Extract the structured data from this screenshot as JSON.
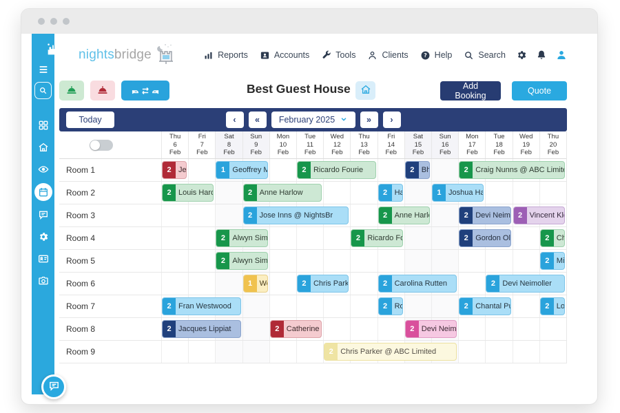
{
  "colors": {
    "sidebar_blue": "#2ba8dd",
    "navbar_navy": "#2b3f77",
    "add_booking_navy": "#273c72",
    "quote_blue": "#2aa9e0",
    "titlebar_gray": "#ebebeb"
  },
  "sidebar": {
    "items": [
      {
        "icon": "castle-logo",
        "interactable": false
      },
      {
        "icon": "menu",
        "interactable": true
      },
      {
        "icon": "search",
        "interactable": true,
        "boxed": true
      },
      {
        "icon": "grid",
        "interactable": true,
        "gap": true
      },
      {
        "icon": "home",
        "interactable": true
      },
      {
        "icon": "eye",
        "interactable": true
      },
      {
        "icon": "calendar",
        "interactable": true,
        "active": true
      },
      {
        "icon": "chat",
        "interactable": true
      },
      {
        "icon": "gear",
        "interactable": true
      },
      {
        "icon": "id-card",
        "interactable": true
      },
      {
        "icon": "camera",
        "interactable": true
      }
    ]
  },
  "topnav": {
    "logo": {
      "part1": "nights",
      "part2": "bridge"
    },
    "items": [
      {
        "label": "Reports",
        "icon": "bar-chart"
      },
      {
        "label": "Accounts",
        "icon": "contact-card"
      },
      {
        "label": "Tools",
        "icon": "wrench"
      },
      {
        "label": "Clients",
        "icon": "person"
      },
      {
        "label": "Help",
        "icon": "help-circle"
      },
      {
        "label": "Search",
        "icon": "magnifier"
      }
    ],
    "action_icons": [
      {
        "icon": "gear"
      },
      {
        "icon": "bell"
      },
      {
        "icon": "user-avatar"
      }
    ]
  },
  "toolbar": {
    "property_name": "Best Guest House",
    "icon_buttons": [
      {
        "icon": "service-bell",
        "variant": "green"
      },
      {
        "icon": "service-bell",
        "variant": "red"
      },
      {
        "icon": "room-move",
        "variant": "blue"
      }
    ],
    "add_booking_label": "Add Booking",
    "quote_label": "Quote"
  },
  "date_nav": {
    "today_label": "Today",
    "prev": "‹",
    "fast_prev": "«",
    "month_label": "February 2025",
    "fast_next": "»",
    "next": "›"
  },
  "grid": {
    "days": [
      {
        "dow": "Thu",
        "day": "6",
        "month": "Feb",
        "weekend": false
      },
      {
        "dow": "Fri",
        "day": "7",
        "month": "Feb",
        "weekend": false
      },
      {
        "dow": "Sat",
        "day": "8",
        "month": "Feb",
        "weekend": true
      },
      {
        "dow": "Sun",
        "day": "9",
        "month": "Feb",
        "weekend": true
      },
      {
        "dow": "Mon",
        "day": "10",
        "month": "Feb",
        "weekend": false
      },
      {
        "dow": "Tue",
        "day": "11",
        "month": "Feb",
        "weekend": false
      },
      {
        "dow": "Wed",
        "day": "12",
        "month": "Feb",
        "weekend": false
      },
      {
        "dow": "Thu",
        "day": "13",
        "month": "Feb",
        "weekend": false
      },
      {
        "dow": "Fri",
        "day": "14",
        "month": "Feb",
        "weekend": false
      },
      {
        "dow": "Sat",
        "day": "15",
        "month": "Feb",
        "weekend": true
      },
      {
        "dow": "Sun",
        "day": "16",
        "month": "Feb",
        "weekend": true
      },
      {
        "dow": "Mon",
        "day": "17",
        "month": "Feb",
        "weekend": false
      },
      {
        "dow": "Tue",
        "day": "18",
        "month": "Feb",
        "weekend": false
      },
      {
        "dow": "Wed",
        "day": "19",
        "month": "Feb",
        "weekend": false
      },
      {
        "dow": "Thu",
        "day": "20",
        "month": "Feb",
        "weekend": false
      }
    ],
    "rooms": [
      {
        "name": "Room 1",
        "bookings": [
          {
            "guests": "2",
            "name": "Jessi",
            "start": 0,
            "span": 1,
            "scheme": "red"
          },
          {
            "guests": "1",
            "name": "Geoffrey Mo",
            "start": 2,
            "span": 2,
            "scheme": "blue"
          },
          {
            "guests": "2",
            "name": "Ricardo Fourie",
            "start": 5,
            "span": 3,
            "scheme": "green"
          },
          {
            "guests": "2",
            "name": "Bhak",
            "start": 9,
            "span": 1,
            "scheme": "navy"
          },
          {
            "guests": "2",
            "name": "Craig Nunns @ ABC Limited",
            "start": 11,
            "span": 4,
            "scheme": "green"
          }
        ]
      },
      {
        "name": "Room 2",
        "bookings": [
          {
            "guests": "2",
            "name": "Louis Hardy",
            "start": 0,
            "span": 2,
            "scheme": "green"
          },
          {
            "guests": "2",
            "name": "Anne Harlow",
            "start": 3,
            "span": 3,
            "scheme": "green"
          },
          {
            "guests": "2",
            "name": "Harc",
            "start": 8,
            "span": 1,
            "scheme": "blue"
          },
          {
            "guests": "1",
            "name": "Joshua Hatte",
            "start": 10,
            "span": 2,
            "scheme": "blue"
          }
        ]
      },
      {
        "name": "Room 3",
        "bookings": [
          {
            "guests": "2",
            "name": "Jose Inns @ NightsBr",
            "start": 3,
            "span": 4,
            "scheme": "blue"
          },
          {
            "guests": "2",
            "name": "Anne Harlow",
            "start": 8,
            "span": 2,
            "scheme": "green"
          },
          {
            "guests": "2",
            "name": "Devi Neimoll",
            "start": 11,
            "span": 2,
            "scheme": "navy"
          },
          {
            "guests": "2",
            "name": "Vincent Klop",
            "start": 13,
            "span": 2,
            "scheme": "purple"
          }
        ]
      },
      {
        "name": "Room 4",
        "bookings": [
          {
            "guests": "2",
            "name": "Alwyn Simps",
            "start": 2,
            "span": 2,
            "scheme": "green"
          },
          {
            "guests": "2",
            "name": "Ricardo Four",
            "start": 7,
            "span": 2,
            "scheme": "green"
          },
          {
            "guests": "2",
            "name": "Gordon Oliv",
            "start": 11,
            "span": 2,
            "scheme": "navy"
          },
          {
            "guests": "2",
            "name": "Char",
            "start": 14,
            "span": 1,
            "scheme": "green"
          }
        ]
      },
      {
        "name": "Room 5",
        "bookings": [
          {
            "guests": "2",
            "name": "Alwyn Simps",
            "start": 2,
            "span": 2,
            "scheme": "green"
          },
          {
            "guests": "2",
            "name": "Mich",
            "start": 14,
            "span": 1,
            "scheme": "blue"
          }
        ]
      },
      {
        "name": "Room 6",
        "bookings": [
          {
            "guests": "1",
            "name": "Well",
            "start": 3,
            "span": 1,
            "scheme": "yellow"
          },
          {
            "guests": "2",
            "name": "Chris Parker",
            "start": 5,
            "span": 2,
            "scheme": "blue"
          },
          {
            "guests": "2",
            "name": "Carolina Rutten",
            "start": 8,
            "span": 3,
            "scheme": "blue"
          },
          {
            "guests": "2",
            "name": "Devi Neimoller",
            "start": 12,
            "span": 3,
            "scheme": "blue"
          }
        ]
      },
      {
        "name": "Room 7",
        "bookings": [
          {
            "guests": "2",
            "name": "Fran Westwood",
            "start": 0,
            "span": 3,
            "scheme": "blue"
          },
          {
            "guests": "2",
            "name": "Rose",
            "start": 8,
            "span": 1,
            "scheme": "blue"
          },
          {
            "guests": "2",
            "name": "Chantal Pulle",
            "start": 11,
            "span": 2,
            "scheme": "blue"
          },
          {
            "guests": "2",
            "name": "Louis",
            "start": 14,
            "span": 1,
            "scheme": "blue"
          }
        ]
      },
      {
        "name": "Room 8",
        "bookings": [
          {
            "guests": "2",
            "name": "Jacques Lippiat",
            "start": 0,
            "span": 3,
            "scheme": "navy"
          },
          {
            "guests": "2",
            "name": "Catherine Rc",
            "start": 4,
            "span": 2,
            "scheme": "red"
          },
          {
            "guests": "2",
            "name": "Devi Neimoll",
            "start": 9,
            "span": 2,
            "scheme": "magenta"
          }
        ]
      },
      {
        "name": "Room 9",
        "bookings": [
          {
            "guests": "2",
            "name": "Chris Parker @ ABC Limited",
            "start": 6,
            "span": 5,
            "scheme": "tentative"
          }
        ]
      }
    ]
  },
  "schemes": {
    "green": {
      "badge": "#17964b",
      "fill": "#cde8d4",
      "border": "#9fd1ae",
      "text": "#2e3b31"
    },
    "blue": {
      "badge": "#2aa3dc",
      "fill": "#aadef7",
      "border": "#7cc4e8",
      "text": "#263640"
    },
    "red": {
      "badge": "#b02a37",
      "fill": "#f4cbcf",
      "border": "#dda3a9",
      "text": "#3d2a2c"
    },
    "navy": {
      "badge": "#20407c",
      "fill": "#aabfe0",
      "border": "#8aa3cc",
      "text": "#252e3d"
    },
    "purple": {
      "badge": "#9d5fb5",
      "fill": "#e4d3ec",
      "border": "#c5a8d4",
      "text": "#35293b"
    },
    "magenta": {
      "badge": "#d9509c",
      "fill": "#f6c8e2",
      "border": "#e09cc4",
      "text": "#3b2833"
    },
    "yellow": {
      "badge": "#f0c24e",
      "fill": "#fbeec2",
      "border": "#e8d089",
      "text": "#4a3d1e"
    },
    "tentative": {
      "badge": "#efe4a3",
      "fill": "#fcf8df",
      "border": "#ece1a0",
      "text": "#555048"
    }
  }
}
